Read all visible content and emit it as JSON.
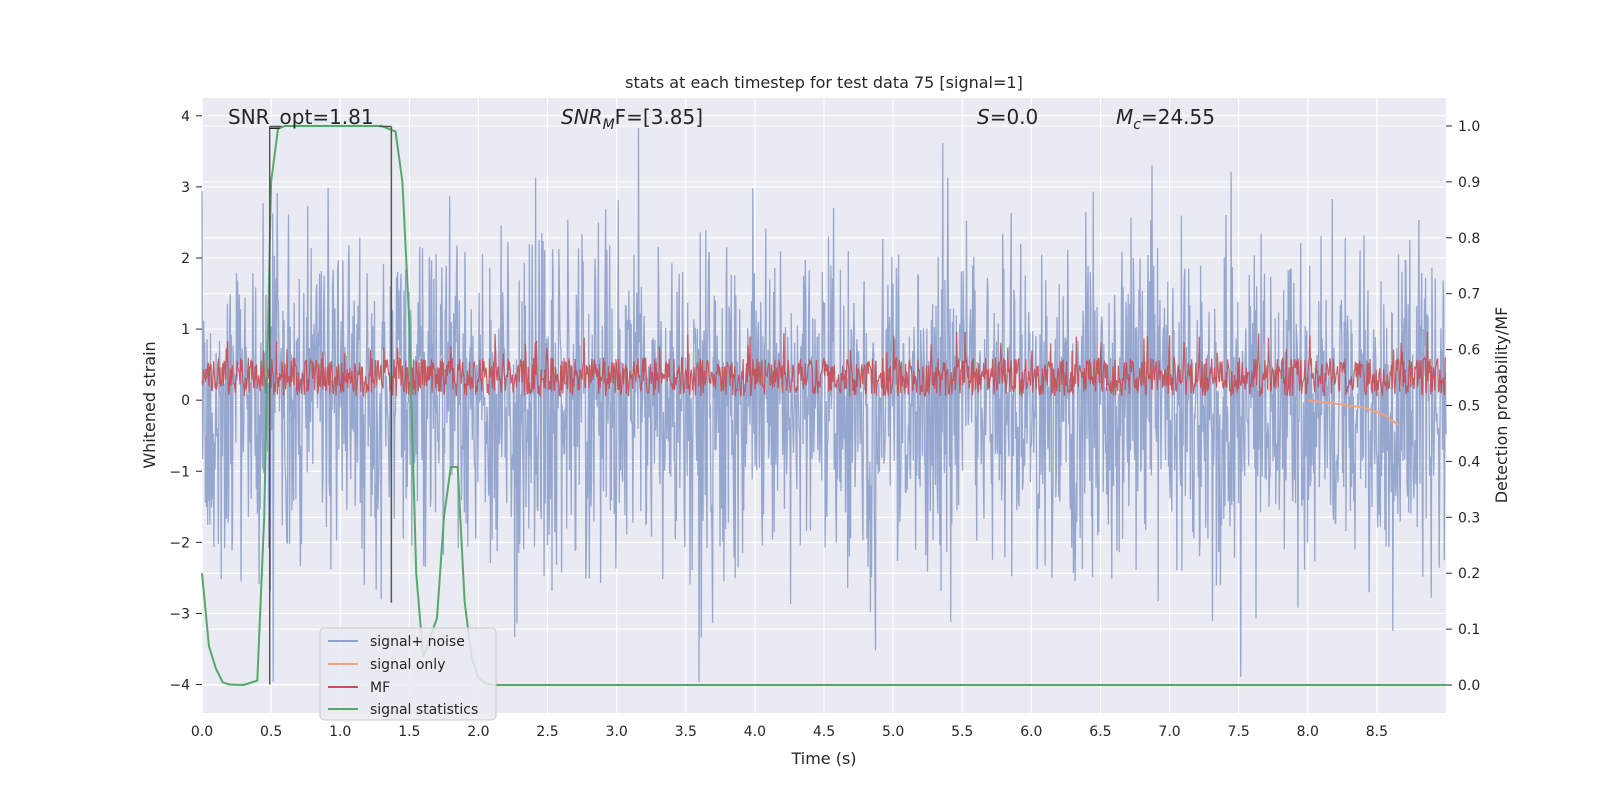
{
  "chart_data": {
    "type": "line",
    "title": "stats at each timestep for test data 75 [signal=1]",
    "xlabel": "Time (s)",
    "ylabel_left": "Whitened strain",
    "ylabel_right": "Detection probability/MF",
    "xlim": [
      0.0,
      9.0
    ],
    "ylim_left": [
      -4.4,
      4.25
    ],
    "ylim_right": [
      -0.05,
      1.05
    ],
    "x_ticks": [
      "0.0",
      "0.5",
      "1.0",
      "1.5",
      "2.0",
      "2.5",
      "3.0",
      "3.5",
      "4.0",
      "4.5",
      "5.0",
      "5.5",
      "6.0",
      "6.5",
      "7.0",
      "7.5",
      "8.0",
      "8.5"
    ],
    "y_ticks_left": [
      "4",
      "3",
      "2",
      "1",
      "0",
      "−1",
      "−2",
      "−3",
      "−4"
    ],
    "y_ticks_right": [
      "1.0",
      "0.9",
      "0.8",
      "0.7",
      "0.6",
      "0.5",
      "0.4",
      "0.3",
      "0.2",
      "0.1",
      "0.0"
    ],
    "grid": true,
    "legend_position": "lower-left",
    "annotations": {
      "snr_opt": "SNR_opt=1.81",
      "snr_mf_sym": "SNR",
      "snr_mf_sub": "M",
      "snr_mf_rest": "F=[3.85]",
      "s_sym": "S",
      "s_rest": "=0.0",
      "mc_sym": "M",
      "mc_sub": "c",
      "mc_rest": "=24.55"
    },
    "series": [
      {
        "name": "signal+ noise",
        "color": "#8da0cb",
        "axis": "left",
        "envelope": {
          "x_range": [
            0.0,
            9.0
          ],
          "typical_abs": 1.5,
          "max": 3.9,
          "min": -4.0
        }
      },
      {
        "name": "signal only",
        "color": "#f0a27e",
        "axis": "left",
        "x": [
          8.0,
          8.2,
          8.4,
          8.55,
          8.62,
          8.66
        ],
        "y": [
          0.0,
          -0.05,
          -0.1,
          -0.2,
          -0.3,
          -0.35
        ]
      },
      {
        "name": "MF",
        "color": "#c44e52",
        "axis": "left",
        "envelope": {
          "x_range": [
            0.0,
            9.0
          ],
          "low": 0.05,
          "high": 0.6,
          "max": 1.0
        }
      },
      {
        "name": "signal statistics",
        "color": "#55a868",
        "axis": "right",
        "x": [
          0.0,
          0.05,
          0.1,
          0.15,
          0.2,
          0.3,
          0.4,
          0.45,
          0.5,
          0.55,
          0.6,
          0.7,
          0.8,
          0.9,
          1.0,
          1.1,
          1.2,
          1.3,
          1.35,
          1.4,
          1.45,
          1.5,
          1.55,
          1.6,
          1.7,
          1.75,
          1.8,
          1.85,
          1.9,
          1.95,
          2.0,
          2.05,
          2.1,
          2.2,
          3.0,
          4.0,
          5.0,
          6.0,
          7.0,
          8.0,
          9.0
        ],
        "y": [
          0.2,
          0.07,
          0.03,
          0.005,
          0.001,
          0.0,
          0.008,
          0.3,
          0.9,
          0.995,
          1.0,
          1.0,
          1.0,
          1.0,
          1.0,
          1.0,
          1.0,
          1.0,
          0.995,
          0.99,
          0.9,
          0.65,
          0.2,
          0.05,
          0.12,
          0.3,
          0.39,
          0.39,
          0.15,
          0.05,
          0.013,
          0.003,
          0.0,
          0.0,
          0.0,
          0.0,
          0.0,
          0.0,
          0.0,
          0.0,
          0.0
        ]
      }
    ],
    "markers": {
      "color": "#555555",
      "bracket_top_left": 3.85,
      "lines_x": [
        0.49,
        1.37
      ]
    }
  }
}
